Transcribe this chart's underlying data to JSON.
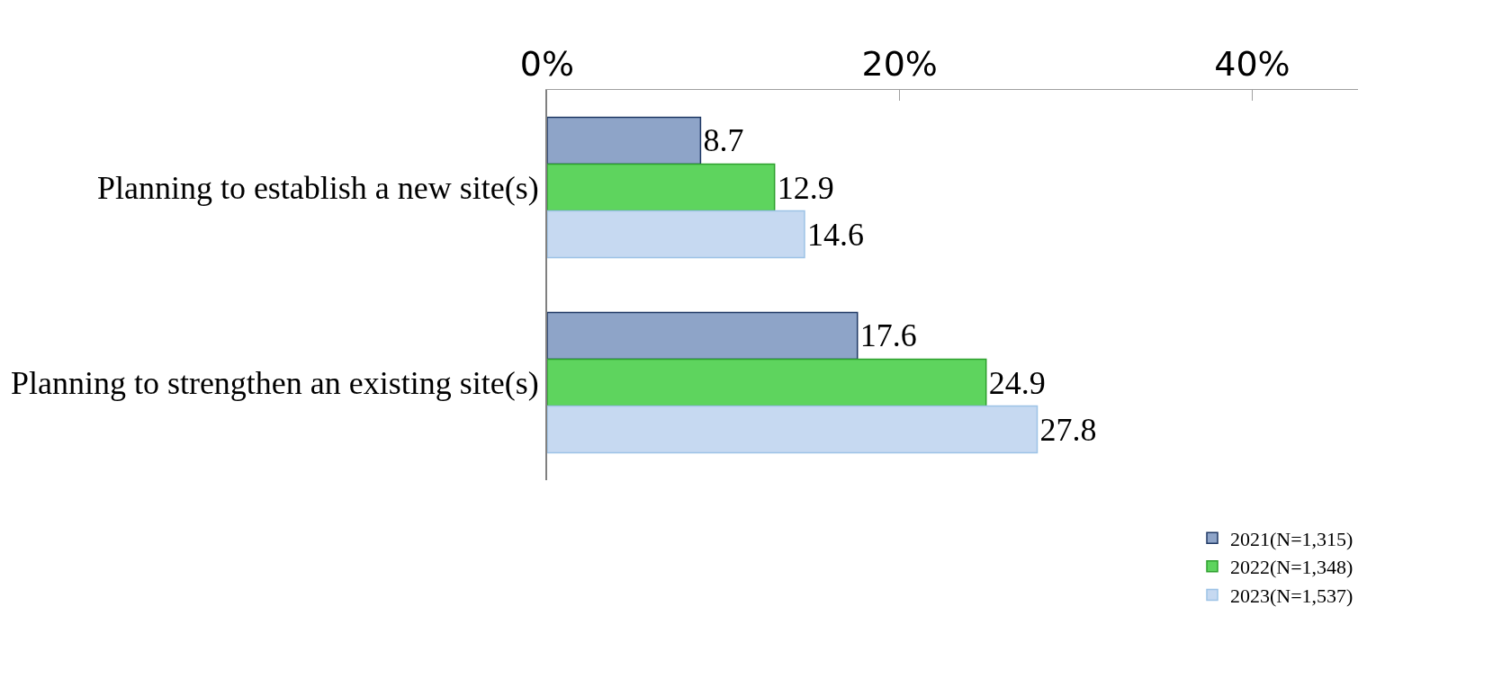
{
  "chart_data": {
    "type": "bar",
    "orientation": "horizontal",
    "categories": [
      "Planning to establish a new site(s)",
      "Planning to strengthen an existing site(s)"
    ],
    "series": [
      {
        "name": "2021(N=1,315)",
        "color": "#8ea4c8",
        "values": [
          8.7,
          17.6
        ]
      },
      {
        "name": "2022(N=1,348)",
        "color": "#5ed45e",
        "values": [
          12.9,
          24.9
        ]
      },
      {
        "name": "2023(N=1,537)",
        "color": "#c6d9f1",
        "values": [
          14.6,
          27.8
        ]
      }
    ],
    "xlim": [
      0,
      46
    ],
    "xticks": [
      {
        "value": 0,
        "label": "0%"
      },
      {
        "value": 20,
        "label": "20%"
      },
      {
        "value": 40,
        "label": "40%"
      }
    ],
    "data_labels": true,
    "legend": "bottom right"
  }
}
